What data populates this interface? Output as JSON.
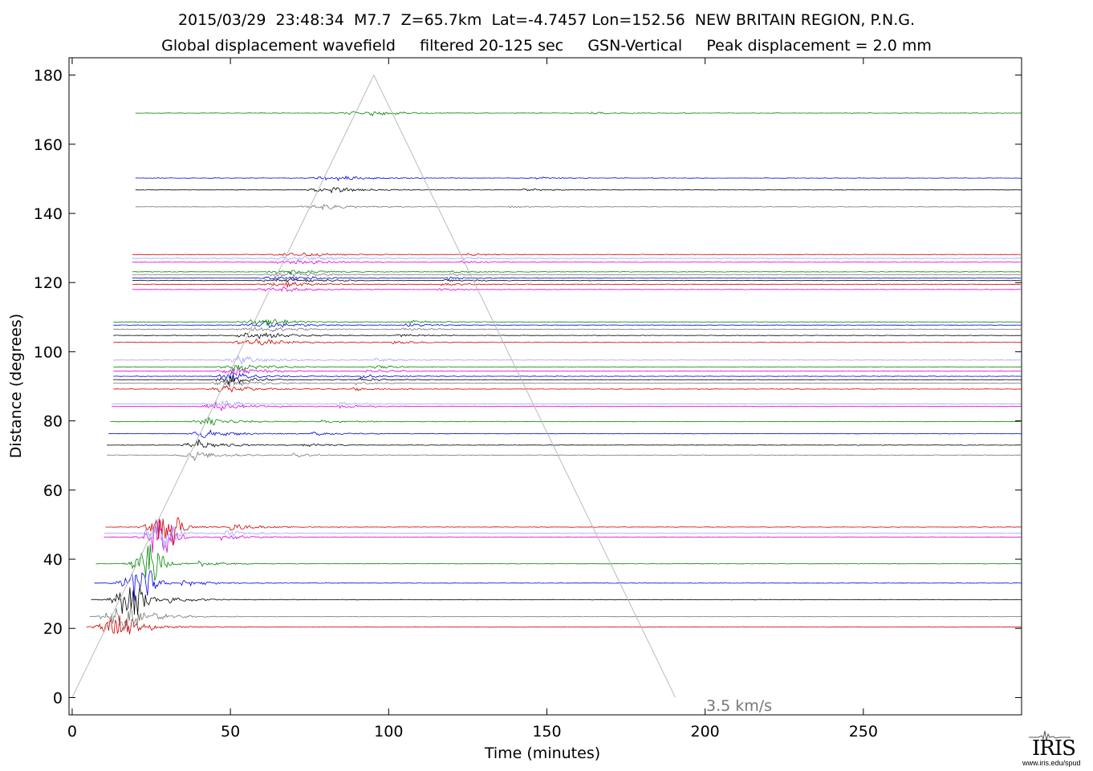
{
  "header": {
    "title": "2015/03/29  23:48:34  M7.7  Z=65.7km  Lat=-4.7457 Lon=152.56  NEW BRITAIN REGION, P.N.G.",
    "subtitle": "Global displacement wavefield     filtered 20-125 sec     GSN-Vertical     Peak displacement = 2.0 mm"
  },
  "logo": {
    "word": "IRIS",
    "url": "www.iris.edu/spud"
  },
  "chart_data": {
    "type": "line",
    "xlabel": "Time (minutes)",
    "ylabel": "Distance (degrees)",
    "xlim": [
      -1,
      300
    ],
    "ylim": [
      -5,
      185
    ],
    "xticks": [
      0,
      50,
      100,
      150,
      200,
      250
    ],
    "yticks": [
      0,
      20,
      40,
      60,
      80,
      100,
      120,
      140,
      160,
      180
    ],
    "grid": false,
    "reference_line": {
      "label": "3.5 km/s",
      "x": [
        0,
        95.3,
        190.6
      ],
      "y": [
        0,
        180,
        0
      ]
    },
    "colors": {
      "red": "#cc0000",
      "grey": "#777777",
      "black": "#000000",
      "blue": "#0000ee",
      "green": "#008800",
      "magenta": "#dd00dd",
      "lavender": "#a0a0ff",
      "axis": "#000000",
      "refline": "#bbbbbb",
      "refline_label": "#777777"
    },
    "traces": [
      {
        "distance": 20.4,
        "start": 4.5,
        "color": "red"
      },
      {
        "distance": 23.4,
        "start": 5.5,
        "color": "grey"
      },
      {
        "distance": 28.3,
        "start": 6.0,
        "color": "black"
      },
      {
        "distance": 33.1,
        "start": 7.0,
        "color": "blue"
      },
      {
        "distance": 38.7,
        "start": 7.5,
        "color": "green"
      },
      {
        "distance": 46.4,
        "start": 10.0,
        "color": "magenta"
      },
      {
        "distance": 47.5,
        "start": 10.0,
        "color": "lavender"
      },
      {
        "distance": 49.3,
        "start": 10.5,
        "color": "red"
      },
      {
        "distance": 70.1,
        "start": 11.0,
        "color": "grey"
      },
      {
        "distance": 73.0,
        "start": 11.0,
        "color": "black"
      },
      {
        "distance": 76.3,
        "start": 11.5,
        "color": "blue"
      },
      {
        "distance": 79.8,
        "start": 12.0,
        "color": "green"
      },
      {
        "distance": 84.2,
        "start": 12.5,
        "color": "magenta"
      },
      {
        "distance": 84.9,
        "start": 12.5,
        "color": "lavender"
      },
      {
        "distance": 89.2,
        "start": 13.0,
        "color": "red"
      },
      {
        "distance": 90.9,
        "start": 13.0,
        "color": "grey"
      },
      {
        "distance": 91.9,
        "start": 13.0,
        "color": "black"
      },
      {
        "distance": 92.9,
        "start": 13.0,
        "color": "blue"
      },
      {
        "distance": 94.4,
        "start": 13.0,
        "color": "magenta"
      },
      {
        "distance": 95.6,
        "start": 13.0,
        "color": "green"
      },
      {
        "distance": 97.6,
        "start": 13.0,
        "color": "lavender"
      },
      {
        "distance": 102.7,
        "start": 13.0,
        "color": "red"
      },
      {
        "distance": 104.7,
        "start": 13.0,
        "color": "black"
      },
      {
        "distance": 106.5,
        "start": 13.0,
        "color": "grey"
      },
      {
        "distance": 107.7,
        "start": 13.0,
        "color": "blue"
      },
      {
        "distance": 108.6,
        "start": 13.0,
        "color": "green"
      },
      {
        "distance": 118.0,
        "start": 19.0,
        "color": "magenta"
      },
      {
        "distance": 119.5,
        "start": 19.0,
        "color": "red"
      },
      {
        "distance": 120.6,
        "start": 19.0,
        "color": "black"
      },
      {
        "distance": 121.3,
        "start": 19.0,
        "color": "blue"
      },
      {
        "distance": 122.3,
        "start": 19.0,
        "color": "grey"
      },
      {
        "distance": 123.1,
        "start": 19.0,
        "color": "green"
      },
      {
        "distance": 125.9,
        "start": 19.0,
        "color": "magenta"
      },
      {
        "distance": 127.0,
        "start": 19.0,
        "color": "lavender"
      },
      {
        "distance": 128.1,
        "start": 19.0,
        "color": "red"
      },
      {
        "distance": 141.9,
        "start": 20.0,
        "color": "grey"
      },
      {
        "distance": 146.8,
        "start": 20.0,
        "color": "black"
      },
      {
        "distance": 150.2,
        "start": 20.0,
        "color": "blue"
      },
      {
        "distance": 169.0,
        "start": 20.0,
        "color": "green"
      }
    ]
  }
}
